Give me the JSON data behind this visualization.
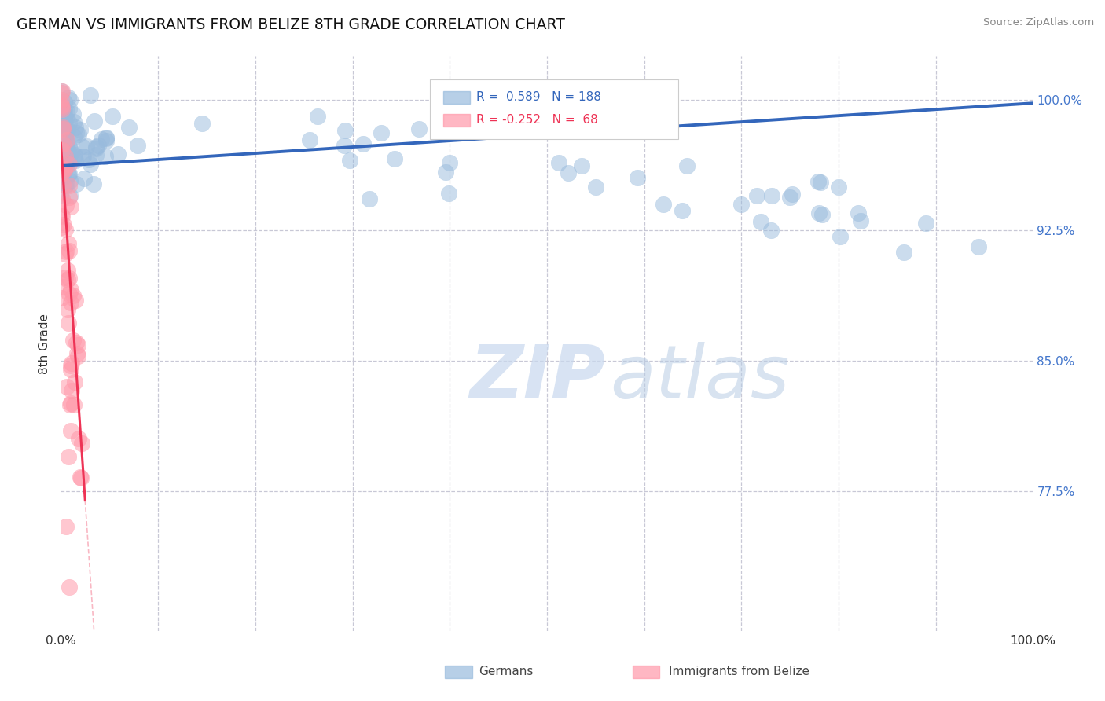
{
  "title": "GERMAN VS IMMIGRANTS FROM BELIZE 8TH GRADE CORRELATION CHART",
  "source": "Source: ZipAtlas.com",
  "ylabel": "8th Grade",
  "yaxis_labels": [
    "77.5%",
    "85.0%",
    "92.5%",
    "100.0%"
  ],
  "yaxis_values": [
    0.775,
    0.85,
    0.925,
    1.0
  ],
  "xaxis_range": [
    0.0,
    1.0
  ],
  "yaxis_range": [
    0.695,
    1.025
  ],
  "legend_blue_label": "Germans",
  "legend_pink_label": "Immigrants from Belize",
  "legend_r_blue": "R =  0.589   N = 188",
  "legend_r_pink": "R = -0.252   N =  68",
  "blue_color": "#99bbdd",
  "pink_color": "#ff99aa",
  "trend_blue": "#3366bb",
  "trend_pink": "#ee3355",
  "watermark_zip": "ZIP",
  "watermark_atlas": "atlas",
  "background_color": "#ffffff",
  "grid_color": "#bbbbcc"
}
